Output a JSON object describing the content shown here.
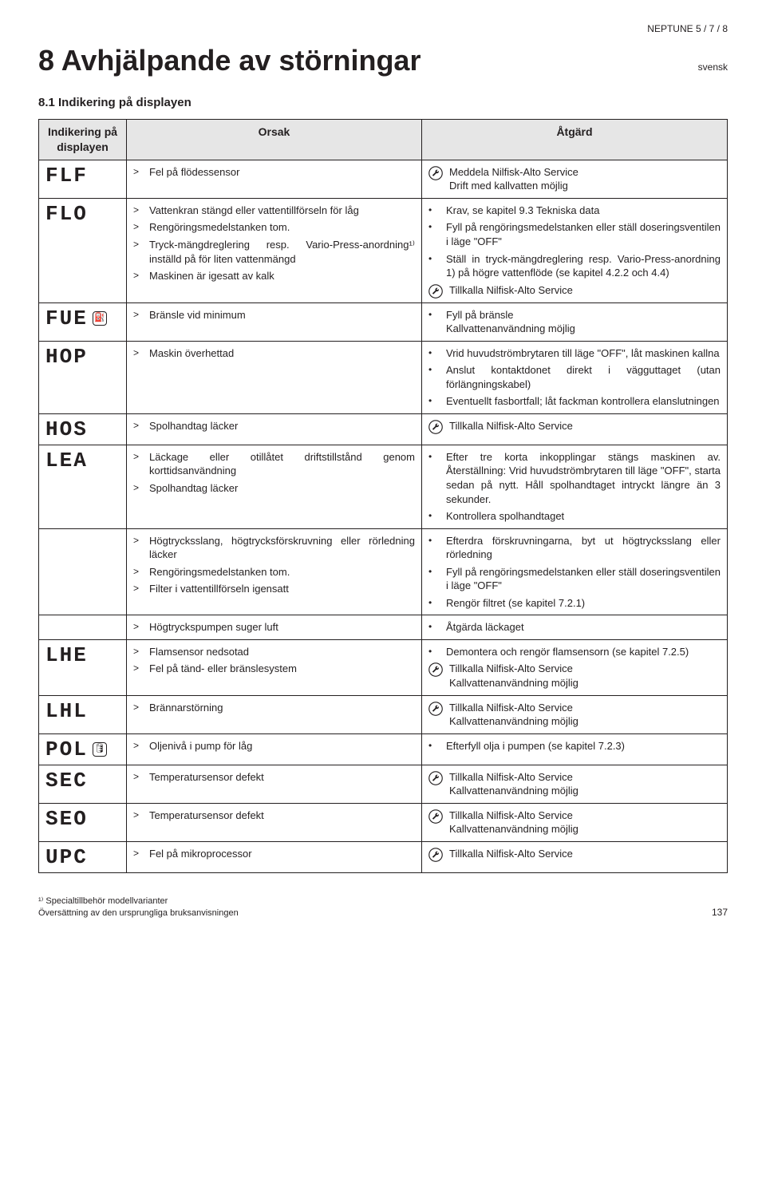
{
  "header_model": "NEPTUNE 5 / 7 / 8",
  "main_title": "8  Avhjälpande av störningar",
  "lang": "svensk",
  "section": "8.1   Indikering på displayen",
  "columns": {
    "code": "Indikering på displayen",
    "cause": "Orsak",
    "action": "Åtgärd"
  },
  "rows": [
    {
      "code": "FLF",
      "causes": [
        {
          "mark": ">",
          "text": "Fel på flödessensor"
        }
      ],
      "actions": [
        {
          "icon": "wrench",
          "text": "Meddela Nilfisk-Alto Service\nDrift med kallvatten möjlig"
        }
      ]
    },
    {
      "code": "FLO",
      "causes": [
        {
          "mark": ">",
          "text": "Vattenkran stängd eller vattentillförseln för låg"
        },
        {
          "mark": ">",
          "text": "Rengöringsmedelstanken tom."
        },
        {
          "mark": ">",
          "text": "Tryck-mängdreglering resp. Vario-Press-anordning¹⁾ inställd på för liten vattenmängd"
        },
        {
          "mark": ">",
          "text": "Maskinen är igesatt av kalk"
        }
      ],
      "actions": [
        {
          "mark": "•",
          "text": "Krav, se kapitel 9.3 Tekniska data"
        },
        {
          "mark": "•",
          "text": "Fyll på rengöringsmedelstanken eller ställ doseringsventilen i läge \"OFF\""
        },
        {
          "mark": "•",
          "text": "Ställ in tryck-mängdreglering resp. Vario-Press-anordning 1) på högre vattenflöde (se kapitel 4.2.2 och 4.4)"
        },
        {
          "icon": "wrench",
          "text": "Tillkalla Nilfisk-Alto Service"
        }
      ]
    },
    {
      "code": "FUE",
      "code_icon": "fuel",
      "causes": [
        {
          "mark": ">",
          "text": "Bränsle vid minimum"
        }
      ],
      "actions": [
        {
          "mark": "•",
          "text": "Fyll på bränsle\nKallvattenanvändning möjlig"
        }
      ]
    },
    {
      "code": "HOP",
      "causes": [
        {
          "mark": ">",
          "text": "Maskin överhettad"
        }
      ],
      "actions": [
        {
          "mark": "•",
          "text": "Vrid huvudströmbrytaren till läge \"OFF\", låt maskinen kallna"
        },
        {
          "mark": "•",
          "text": "Anslut kontaktdonet direkt i vägguttaget (utan förlängningskabel)"
        },
        {
          "mark": "•",
          "text": "Eventuellt fasbortfall; låt fackman kontrollera elanslutningen"
        }
      ]
    },
    {
      "code": "HOS",
      "causes": [
        {
          "mark": ">",
          "text": "Spolhandtag läcker"
        }
      ],
      "actions": [
        {
          "icon": "wrench",
          "text": "Tillkalla Nilfisk-Alto Service"
        }
      ]
    },
    {
      "code": "LEA",
      "causes": [
        {
          "mark": ">",
          "text": "Läckage eller otillåtet driftstillstånd genom korttidsanvändning"
        },
        {
          "mark": ">",
          "text": "Spolhandtag läcker"
        }
      ],
      "actions": [
        {
          "mark": "•",
          "text": "Efter tre korta inkopplingar stängs maskinen av. Återställning: Vrid huvudströmbrytaren till läge \"OFF\", starta sedan på nytt. Håll spolhandtaget intryckt längre än 3 sekunder."
        },
        {
          "mark": "•",
          "text": "Kontrollera spolhandtaget"
        }
      ]
    },
    {
      "code": "",
      "causes": [
        {
          "mark": ">",
          "text": "Högtrycksslang, högtrycksförskruvning eller rörledning läcker"
        },
        {
          "mark": ">",
          "text": "Rengöringsmedelstanken tom."
        },
        {
          "mark": ">",
          "text": "Filter i vattentillförseln igensatt"
        }
      ],
      "actions": [
        {
          "mark": "•",
          "text": "Efterdra förskruvningarna, byt ut högtrycksslang eller rörledning"
        },
        {
          "mark": "•",
          "text": "Fyll på rengöringsmedelstanken eller ställ doseringsventilen i läge \"OFF\""
        },
        {
          "mark": "•",
          "text": "Rengör filtret (se kapitel 7.2.1)"
        }
      ]
    },
    {
      "code": "",
      "causes": [
        {
          "mark": ">",
          "text": "Högtryckspumpen suger luft"
        }
      ],
      "actions": [
        {
          "mark": "•",
          "text": "Åtgärda läckaget"
        }
      ]
    },
    {
      "code": "LHE",
      "causes": [
        {
          "mark": ">",
          "text": "Flamsensor nedsotad"
        },
        {
          "mark": ">",
          "text": "Fel på tänd- eller bränslesystem"
        }
      ],
      "actions": [
        {
          "mark": "•",
          "text": "Demontera och rengör flamsensorn (se kapitel 7.2.5)"
        },
        {
          "icon": "wrench",
          "text": "Tillkalla Nilfisk-Alto Service\nKallvattenanvändning möjlig"
        }
      ]
    },
    {
      "code": "LHL",
      "causes": [
        {
          "mark": ">",
          "text": "Brännarstörning"
        }
      ],
      "actions": [
        {
          "icon": "wrench",
          "text": "Tillkalla Nilfisk-Alto Service\nKallvattenanvändning möjlig"
        }
      ]
    },
    {
      "code": "POL",
      "code_icon": "oil",
      "causes": [
        {
          "mark": ">",
          "text": "Oljenivå i pump för låg"
        }
      ],
      "actions": [
        {
          "mark": "•",
          "text": "Efterfyll olja i pumpen (se kapitel 7.2.3)"
        }
      ]
    },
    {
      "code": "SEC",
      "causes": [
        {
          "mark": ">",
          "text": "Temperatursensor defekt"
        }
      ],
      "actions": [
        {
          "icon": "wrench",
          "text": "Tillkalla Nilfisk-Alto Service\nKallvattenanvändning möjlig"
        }
      ]
    },
    {
      "code": "SEO",
      "causes": [
        {
          "mark": ">",
          "text": "Temperatursensor defekt"
        }
      ],
      "actions": [
        {
          "icon": "wrench",
          "text": "Tillkalla Nilfisk-Alto Service\nKallvattenanvändning möjlig"
        }
      ]
    },
    {
      "code": "UPC",
      "causes": [
        {
          "mark": ">",
          "text": "Fel på mikroprocessor"
        }
      ],
      "actions": [
        {
          "icon": "wrench",
          "text": "Tillkalla Nilfisk-Alto Service"
        }
      ]
    }
  ],
  "footnote": "¹⁾ Specialtillbehör modellvarianter\nÖversättning av den ursprungliga bruksanvisningen",
  "page_number": "137"
}
